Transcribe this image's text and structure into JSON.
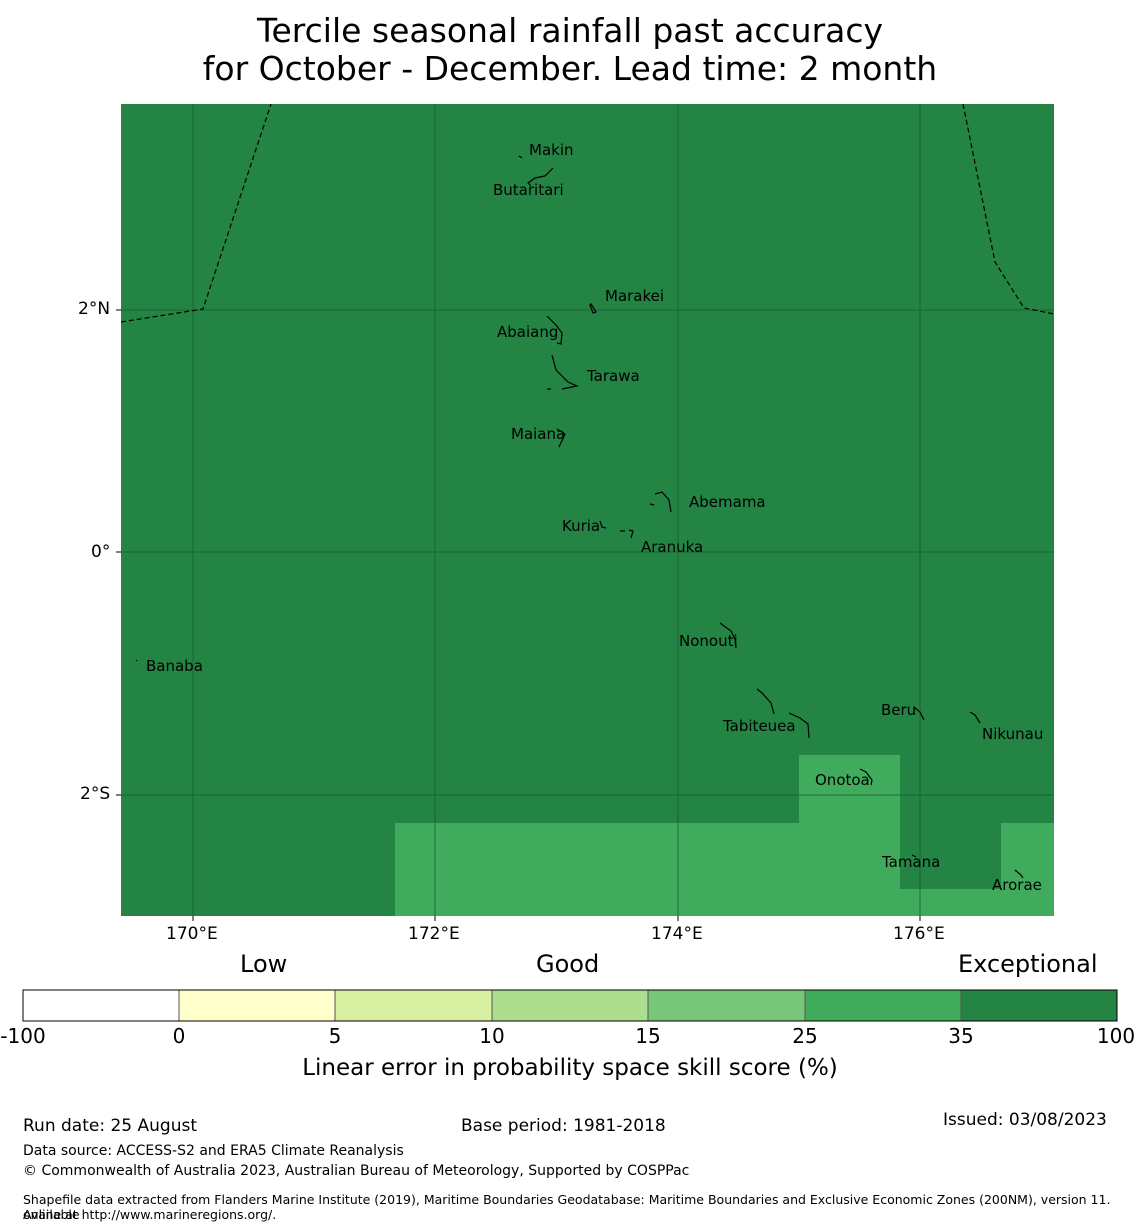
{
  "title": {
    "line1": "Tercile seasonal rainfall past accuracy",
    "line2": "for October - December. Lead time: 2 month"
  },
  "map": {
    "lat_labels": [
      "2°N",
      "0°",
      "2°S"
    ],
    "lon_labels": [
      "170°E",
      "172°E",
      "174°E",
      "176°E"
    ],
    "islands": [
      "Makin",
      "Butaritari",
      "Marakei",
      "Abaiang",
      "Tarawa",
      "Maiana",
      "Abemama",
      "Kuria",
      "Aranuka",
      "Nonouti",
      "Banaba",
      "Tabiteuea",
      "Beru",
      "Nikunau",
      "Onotoa",
      "Tamana",
      "Arorae"
    ],
    "colors": {
      "exceptional": "#238443",
      "high": "#41ab5d"
    }
  },
  "colorbar": {
    "categories": {
      "low": "Low",
      "good": "Good",
      "exceptional": "Exceptional"
    },
    "ticks": [
      "-100",
      "0",
      "5",
      "10",
      "15",
      "25",
      "35",
      "100"
    ],
    "colors": [
      "#ffffff",
      "#ffffcc",
      "#d9f0a3",
      "#addd8e",
      "#78c679",
      "#41ab5d",
      "#238443"
    ],
    "label": "Linear error in probability space skill score (%)"
  },
  "footer": {
    "run_date": "Run date: 25 August",
    "base_period": "Base period: 1981-2018",
    "issued": "Issued: 03/08/2023",
    "data_source": "Data source: ACCESS-S2 and ERA5 Climate Reanalysis",
    "copyright": "© Commonwealth of Australia 2023, Australian Bureau of Meteorology, Supported by COSPPac",
    "shapefile_line1": "Shapefile data extracted from Flanders Marine Institute (2019), Maritime Boundaries Geodatabase: Maritime Boundaries and Exclusive Economic Zones (200NM), version 11. Available",
    "shapefile_line2": "online at http://www.marineregions.org/."
  }
}
